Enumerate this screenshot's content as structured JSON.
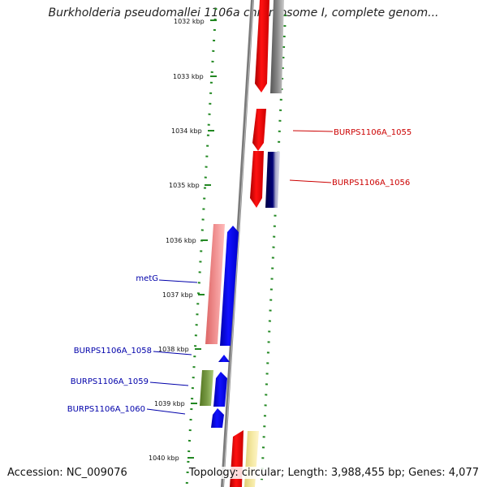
{
  "title": "Burkholderia pseudomallei 1106a chromosome I, complete genom...",
  "footer": {
    "accession": "Accession: NC_009076",
    "topology": "Topology: circular; Length: 3,988,455 bp; Genes: 4,077"
  },
  "scale": {
    "ticks": [
      {
        "label": "1032 kbp"
      },
      {
        "label": "1033 kbp"
      },
      {
        "label": "1034 kbp"
      },
      {
        "label": "1035 kbp"
      },
      {
        "label": "1036 kbp"
      },
      {
        "label": "1037 kbp"
      },
      {
        "label": "1038 kbp"
      },
      {
        "label": "1039 kbp"
      },
      {
        "label": "1040 kbp"
      }
    ]
  },
  "gene_labels": [
    {
      "text": "BURPS1106A_1055",
      "strand": "forward",
      "color": "#cc0000"
    },
    {
      "text": "BURPS1106A_1056",
      "strand": "forward",
      "color": "#cc0000"
    },
    {
      "text": "metG",
      "strand": "reverse",
      "color": "#0000aa"
    },
    {
      "text": "BURPS1106A_1058",
      "strand": "reverse",
      "color": "#0000aa"
    },
    {
      "text": "BURPS1106A_1059",
      "strand": "reverse",
      "color": "#0000aa"
    },
    {
      "text": "BURPS1106A_1060",
      "strand": "reverse",
      "color": "#0000aa"
    }
  ],
  "colors": {
    "forward_gene": "#ee0000",
    "reverse_gene": "#0000ee",
    "feature_gray": "#777777",
    "feature_navy": "#000066",
    "feature_pink": "#ee8888",
    "feature_olive": "#668833",
    "feature_yellow": "#eedd88",
    "backbone": "#888888",
    "ring_dots": "#228822"
  }
}
